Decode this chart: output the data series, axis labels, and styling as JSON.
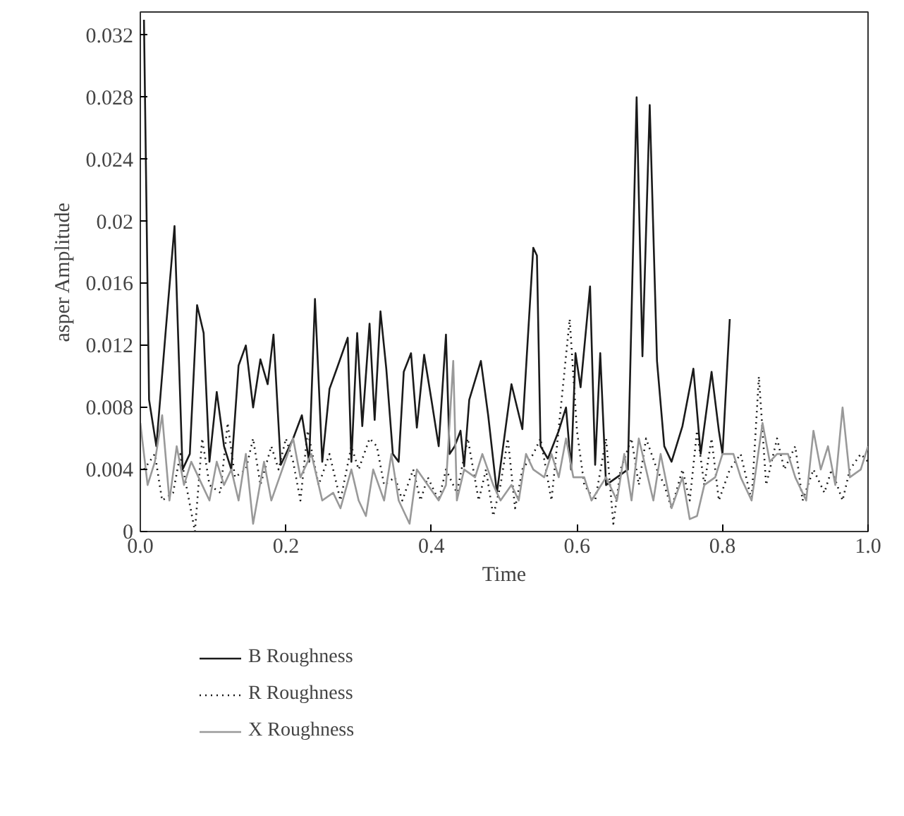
{
  "chart_data": {
    "type": "line",
    "xlabel": "Time",
    "ylabel": "asper Amplitude",
    "xlim": [
      0,
      1
    ],
    "ylim": [
      0,
      0.0335
    ],
    "xticks": [
      {
        "value": 0,
        "label": "0.0"
      },
      {
        "value": 0.2,
        "label": "0.2"
      },
      {
        "value": 0.4,
        "label": "0.4"
      },
      {
        "value": 0.6,
        "label": "0.6"
      },
      {
        "value": 0.8,
        "label": "0.8"
      },
      {
        "value": 1,
        "label": "1.0"
      }
    ],
    "yticks": [
      0,
      0.004,
      0.008,
      0.012,
      0.016,
      0.02,
      0.024,
      0.028,
      0.032
    ],
    "grid": false,
    "legend": "bottom",
    "marker": "none",
    "series": [
      {
        "name": "B Roughness",
        "color": "#1a1a1a",
        "line_style": "solid",
        "x": [
          0.005,
          0.012,
          0.022,
          0.035,
          0.047,
          0.058,
          0.068,
          0.078,
          0.087,
          0.095,
          0.105,
          0.115,
          0.125,
          0.135,
          0.145,
          0.155,
          0.165,
          0.175,
          0.183,
          0.193,
          0.21,
          0.222,
          0.232,
          0.24,
          0.25,
          0.26,
          0.27,
          0.285,
          0.29,
          0.298,
          0.305,
          0.315,
          0.322,
          0.33,
          0.338,
          0.347,
          0.355,
          0.362,
          0.372,
          0.38,
          0.39,
          0.4,
          0.41,
          0.42,
          0.425,
          0.432,
          0.44,
          0.445,
          0.452,
          0.468,
          0.478,
          0.49,
          0.51,
          0.525,
          0.54,
          0.545,
          0.55,
          0.56,
          0.575,
          0.585,
          0.592,
          0.598,
          0.605,
          0.618,
          0.625,
          0.632,
          0.64,
          0.67,
          0.682,
          0.69,
          0.7,
          0.71,
          0.72,
          0.73,
          0.745,
          0.76,
          0.77,
          0.785,
          0.795,
          0.8,
          0.81
        ],
        "values": [
          0.033,
          0.0085,
          0.0055,
          0.013,
          0.0197,
          0.004,
          0.005,
          0.0146,
          0.0128,
          0.0045,
          0.009,
          0.0055,
          0.004,
          0.0107,
          0.012,
          0.008,
          0.0111,
          0.0095,
          0.0127,
          0.0043,
          0.006,
          0.0075,
          0.0045,
          0.015,
          0.0045,
          0.0092,
          0.0105,
          0.0125,
          0.0045,
          0.0128,
          0.0068,
          0.0134,
          0.0072,
          0.0142,
          0.0105,
          0.005,
          0.0045,
          0.0103,
          0.0115,
          0.0067,
          0.0114,
          0.0085,
          0.0055,
          0.0127,
          0.005,
          0.0055,
          0.0065,
          0.0042,
          0.0085,
          0.011,
          0.0075,
          0.0025,
          0.0095,
          0.0066,
          0.0183,
          0.0178,
          0.0055,
          0.0047,
          0.0065,
          0.008,
          0.004,
          0.0115,
          0.0093,
          0.0158,
          0.0043,
          0.0115,
          0.003,
          0.004,
          0.028,
          0.0113,
          0.0275,
          0.011,
          0.0055,
          0.0045,
          0.0068,
          0.0105,
          0.005,
          0.0103,
          0.0065,
          0.005,
          0.0137
        ]
      },
      {
        "name": "R Roughness",
        "color": "#1a1a1a",
        "line_style": "dotted",
        "x": [
          0.005,
          0.02,
          0.03,
          0.045,
          0.055,
          0.065,
          0.075,
          0.085,
          0.095,
          0.11,
          0.12,
          0.13,
          0.145,
          0.155,
          0.165,
          0.18,
          0.19,
          0.2,
          0.21,
          0.22,
          0.23,
          0.245,
          0.26,
          0.275,
          0.29,
          0.3,
          0.315,
          0.325,
          0.335,
          0.35,
          0.36,
          0.375,
          0.385,
          0.395,
          0.41,
          0.42,
          0.435,
          0.45,
          0.465,
          0.475,
          0.485,
          0.495,
          0.505,
          0.515,
          0.525,
          0.54,
          0.55,
          0.565,
          0.58,
          0.59,
          0.6,
          0.61,
          0.625,
          0.64,
          0.65,
          0.66,
          0.675,
          0.685,
          0.695,
          0.71,
          0.72,
          0.73,
          0.745,
          0.755,
          0.765,
          0.775,
          0.785,
          0.795,
          0.81,
          0.825,
          0.84,
          0.85,
          0.86,
          0.875,
          0.885,
          0.9,
          0.91,
          0.925,
          0.94,
          0.95,
          0.965,
          0.975,
          0.99,
          1.0
        ],
        "values": [
          0.004,
          0.005,
          0.002,
          0.0025,
          0.005,
          0.0025,
          0.0,
          0.006,
          0.003,
          0.0025,
          0.007,
          0.0035,
          0.004,
          0.006,
          0.003,
          0.0055,
          0.004,
          0.006,
          0.0045,
          0.002,
          0.0065,
          0.003,
          0.005,
          0.002,
          0.0055,
          0.004,
          0.006,
          0.0055,
          0.003,
          0.0035,
          0.002,
          0.004,
          0.002,
          0.0035,
          0.002,
          0.004,
          0.0025,
          0.006,
          0.002,
          0.004,
          0.001,
          0.003,
          0.006,
          0.0015,
          0.004,
          0.005,
          0.006,
          0.002,
          0.009,
          0.0137,
          0.0065,
          0.003,
          0.002,
          0.006,
          0.0005,
          0.004,
          0.006,
          0.003,
          0.006,
          0.004,
          0.003,
          0.0015,
          0.004,
          0.002,
          0.0065,
          0.003,
          0.006,
          0.002,
          0.004,
          0.005,
          0.002,
          0.01,
          0.003,
          0.006,
          0.004,
          0.0055,
          0.002,
          0.004,
          0.0025,
          0.004,
          0.002,
          0.004,
          0.005,
          0.0045
        ]
      },
      {
        "name": "X Roughness",
        "color": "#999999",
        "line_style": "solid",
        "x": [
          0.0,
          0.01,
          0.02,
          0.03,
          0.04,
          0.05,
          0.06,
          0.07,
          0.085,
          0.095,
          0.105,
          0.115,
          0.125,
          0.135,
          0.145,
          0.155,
          0.17,
          0.18,
          0.195,
          0.21,
          0.22,
          0.235,
          0.25,
          0.265,
          0.275,
          0.29,
          0.3,
          0.31,
          0.32,
          0.335,
          0.345,
          0.355,
          0.37,
          0.38,
          0.395,
          0.41,
          0.42,
          0.43,
          0.435,
          0.445,
          0.46,
          0.47,
          0.485,
          0.495,
          0.51,
          0.52,
          0.53,
          0.54,
          0.555,
          0.565,
          0.575,
          0.585,
          0.595,
          0.61,
          0.62,
          0.64,
          0.655,
          0.665,
          0.675,
          0.685,
          0.695,
          0.705,
          0.715,
          0.73,
          0.745,
          0.755,
          0.765,
          0.775,
          0.79,
          0.8,
          0.815,
          0.825,
          0.84,
          0.855,
          0.865,
          0.875,
          0.89,
          0.9,
          0.915,
          0.925,
          0.935,
          0.945,
          0.955,
          0.965,
          0.975,
          0.99,
          1.0
        ],
        "values": [
          0.007,
          0.003,
          0.0045,
          0.0075,
          0.002,
          0.0055,
          0.003,
          0.0045,
          0.003,
          0.002,
          0.0045,
          0.003,
          0.004,
          0.002,
          0.005,
          0.0005,
          0.0045,
          0.002,
          0.004,
          0.006,
          0.0035,
          0.005,
          0.002,
          0.0025,
          0.0015,
          0.004,
          0.002,
          0.001,
          0.004,
          0.002,
          0.005,
          0.002,
          0.0005,
          0.004,
          0.003,
          0.002,
          0.003,
          0.011,
          0.002,
          0.004,
          0.0035,
          0.005,
          0.003,
          0.002,
          0.003,
          0.002,
          0.005,
          0.004,
          0.0035,
          0.005,
          0.0035,
          0.006,
          0.0035,
          0.0035,
          0.002,
          0.0035,
          0.002,
          0.005,
          0.002,
          0.006,
          0.004,
          0.002,
          0.005,
          0.0015,
          0.0035,
          0.0008,
          0.001,
          0.003,
          0.0035,
          0.005,
          0.005,
          0.0035,
          0.002,
          0.007,
          0.0045,
          0.005,
          0.005,
          0.0035,
          0.002,
          0.0065,
          0.004,
          0.0055,
          0.003,
          0.008,
          0.0035,
          0.004,
          0.0055
        ]
      }
    ]
  }
}
